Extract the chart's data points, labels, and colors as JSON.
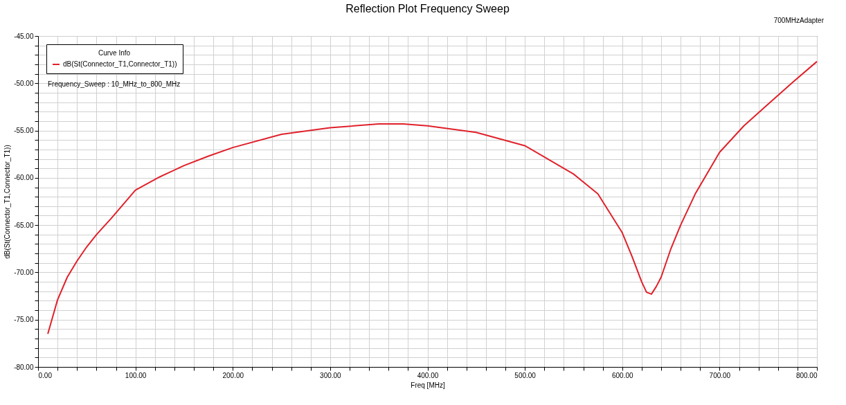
{
  "chart_data": {
    "type": "line",
    "title": "Reflection Plot Frequency Sweep",
    "xlabel": "Freq [MHz]",
    "ylabel": "dB(St(Connector_T1,Connector_T1))",
    "legend_title": "Curve Info",
    "x": [
      10,
      20,
      30,
      40,
      50,
      60,
      75,
      100,
      125,
      150,
      175,
      200,
      250,
      300,
      350,
      375,
      400,
      450,
      500,
      550,
      575,
      600,
      610,
      620,
      625,
      630,
      635,
      640,
      650,
      660,
      675,
      700,
      725,
      750,
      775,
      800
    ],
    "series": [
      {
        "name": "dB(St(Connector_T1,Connector_T1))",
        "color": "#e0202a",
        "values": [
          -76.5,
          -72.9,
          -70.5,
          -68.8,
          -67.3,
          -66.0,
          -64.3,
          -61.3,
          -59.9,
          -58.7,
          -57.7,
          -56.8,
          -55.4,
          -54.7,
          -54.3,
          -54.3,
          -54.5,
          -55.2,
          -56.6,
          -59.6,
          -61.7,
          -65.8,
          -68.3,
          -71.0,
          -72.1,
          -72.3,
          -71.5,
          -70.5,
          -67.5,
          -65.0,
          -61.7,
          -57.3,
          -54.5,
          -52.2,
          -49.9,
          -47.7
        ]
      }
    ],
    "xlim": [
      0,
      800
    ],
    "ylim": [
      -80,
      -45
    ],
    "xticks": [
      {
        "value": 0,
        "label": "0.00"
      },
      {
        "value": 100,
        "label": "100.00"
      },
      {
        "value": 200,
        "label": "200.00"
      },
      {
        "value": 300,
        "label": "300.00"
      },
      {
        "value": 400,
        "label": "400.00"
      },
      {
        "value": 500,
        "label": "500.00"
      },
      {
        "value": 600,
        "label": "600.00"
      },
      {
        "value": 700,
        "label": "700.00"
      },
      {
        "value": 800,
        "label": "800.00"
      },
      {
        "value": 20,
        "label": null
      },
      {
        "value": 40,
        "label": null
      },
      {
        "value": 60,
        "label": null
      },
      {
        "value": 80,
        "label": null
      },
      {
        "value": 120,
        "label": null
      },
      {
        "value": 140,
        "label": null
      },
      {
        "value": 160,
        "label": null
      },
      {
        "value": 180,
        "label": null
      },
      {
        "value": 220,
        "label": null
      },
      {
        "value": 240,
        "label": null
      },
      {
        "value": 260,
        "label": null
      },
      {
        "value": 280,
        "label": null
      },
      {
        "value": 320,
        "label": null
      },
      {
        "value": 340,
        "label": null
      },
      {
        "value": 360,
        "label": null
      },
      {
        "value": 380,
        "label": null
      },
      {
        "value": 420,
        "label": null
      },
      {
        "value": 440,
        "label": null
      },
      {
        "value": 460,
        "label": null
      },
      {
        "value": 480,
        "label": null
      },
      {
        "value": 520,
        "label": null
      },
      {
        "value": 540,
        "label": null
      },
      {
        "value": 560,
        "label": null
      },
      {
        "value": 580,
        "label": null
      },
      {
        "value": 620,
        "label": null
      },
      {
        "value": 640,
        "label": null
      },
      {
        "value": 660,
        "label": null
      },
      {
        "value": 680,
        "label": null
      },
      {
        "value": 720,
        "label": null
      },
      {
        "value": 740,
        "label": null
      },
      {
        "value": 760,
        "label": null
      },
      {
        "value": 780,
        "label": null
      }
    ],
    "yticks": [
      {
        "value": -80,
        "label": "-80.00"
      },
      {
        "value": -75,
        "label": "-75.00"
      },
      {
        "value": -70,
        "label": "-70.00"
      },
      {
        "value": -65,
        "label": "-65.00"
      },
      {
        "value": -60,
        "label": "-60.00"
      },
      {
        "value": -55,
        "label": "-55.00"
      },
      {
        "value": -50,
        "label": "-50.00"
      },
      {
        "value": -45,
        "label": "-45.00"
      },
      {
        "value": -79,
        "label": null
      },
      {
        "value": -78,
        "label": null
      },
      {
        "value": -77,
        "label": null
      },
      {
        "value": -76,
        "label": null
      },
      {
        "value": -74,
        "label": null
      },
      {
        "value": -73,
        "label": null
      },
      {
        "value": -72,
        "label": null
      },
      {
        "value": -71,
        "label": null
      },
      {
        "value": -69,
        "label": null
      },
      {
        "value": -68,
        "label": null
      },
      {
        "value": -67,
        "label": null
      },
      {
        "value": -66,
        "label": null
      },
      {
        "value": -64,
        "label": null
      },
      {
        "value": -63,
        "label": null
      },
      {
        "value": -62,
        "label": null
      },
      {
        "value": -61,
        "label": null
      },
      {
        "value": -59,
        "label": null
      },
      {
        "value": -58,
        "label": null
      },
      {
        "value": -57,
        "label": null
      },
      {
        "value": -56,
        "label": null
      },
      {
        "value": -54,
        "label": null
      },
      {
        "value": -53,
        "label": null
      },
      {
        "value": -52,
        "label": null
      },
      {
        "value": -51,
        "label": null
      },
      {
        "value": -49,
        "label": null
      },
      {
        "value": -48,
        "label": null
      },
      {
        "value": -47,
        "label": null
      },
      {
        "value": -46,
        "label": null
      }
    ],
    "grid": true,
    "legend": "top left",
    "marker": "none",
    "line_style": "solid",
    "annotations": [
      "700MHzAdapter",
      "Frequency_Sweep : 10_MHz_to_800_MHz"
    ]
  }
}
